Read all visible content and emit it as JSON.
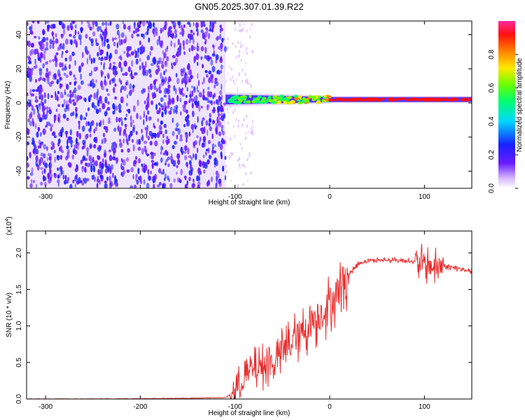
{
  "title": "GN05.2025.307.01.39.R22",
  "chart_data": [
    {
      "type": "heatmap",
      "name": "spectrogram",
      "xlabel": "Height of straight line (km)",
      "ylabel": "Frequency (Hz)",
      "xlim": [
        -320,
        150
      ],
      "ylim": [
        -50,
        48
      ],
      "xticks": [
        -300,
        -200,
        -100,
        0,
        100
      ],
      "yticks": [
        -40,
        -20,
        0,
        20,
        40
      ],
      "noise_region": {
        "x": [
          -320,
          -110
        ],
        "level": "low (0.0-0.2), broadband"
      },
      "signal_band": {
        "x": [
          -110,
          150
        ],
        "center_freq_hz": 2,
        "note": "green/cyan near x=-100..0, red above 0.8 from 0 to 150"
      },
      "colorbar": {
        "label": "Normalized spectral amplitude",
        "range": [
          0,
          1
        ],
        "ticks": [
          "0.0",
          "0.2",
          "0.4",
          "0.6",
          "0.8"
        ]
      }
    },
    {
      "type": "line",
      "name": "snr",
      "xlabel": "Height of straight line (km)",
      "ylabel": "SNR (10 * v/v)",
      "multiplier_label": "(x10",
      "multiplier_exp": "4",
      "multiplier_close": ")",
      "xlim": [
        -320,
        150
      ],
      "ylim": [
        0,
        2.3
      ],
      "xticks": [
        -300,
        -200,
        -100,
        0,
        100
      ],
      "yticks": [
        "0.0",
        "0.5",
        "1.0",
        "1.5",
        "2.0"
      ],
      "color": "#e83030",
      "series": [
        {
          "name": "SNR",
          "x": [
            -320,
            -250,
            -150,
            -110,
            -100,
            -90,
            -80,
            -70,
            -60,
            -50,
            -40,
            -30,
            -20,
            -10,
            0,
            10,
            20,
            30,
            40,
            60,
            80,
            100,
            110,
            120,
            130,
            150
          ],
          "y": [
            0.0,
            0.0,
            0.01,
            0.02,
            0.1,
            0.3,
            0.4,
            0.45,
            0.5,
            0.65,
            0.8,
            0.9,
            1.05,
            1.15,
            1.3,
            1.5,
            1.7,
            1.85,
            1.9,
            1.9,
            1.9,
            1.85,
            1.8,
            1.82,
            1.8,
            1.75
          ]
        }
      ]
    }
  ]
}
